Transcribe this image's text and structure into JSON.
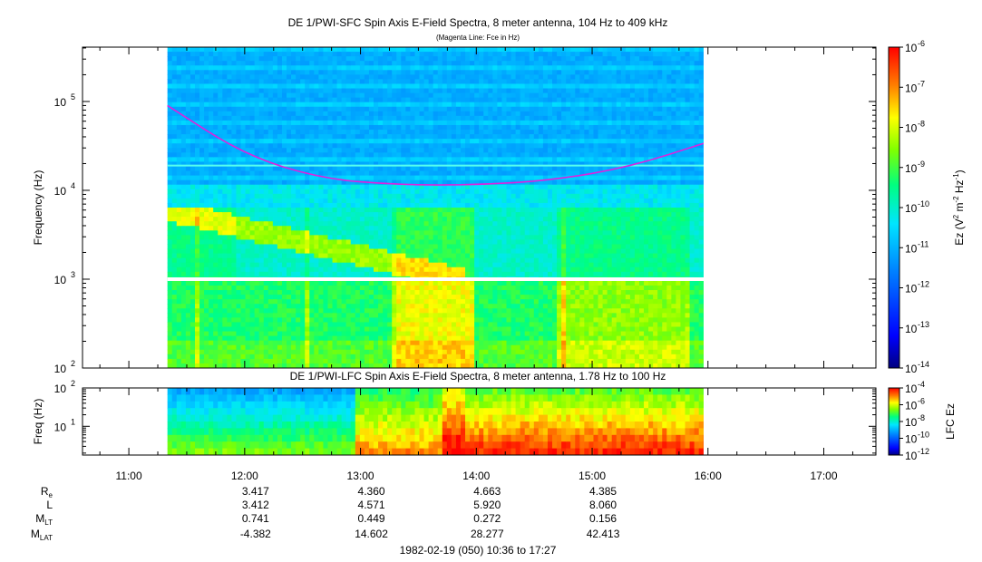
{
  "header": {
    "title": "DE 1/PWI-SFC  Spin Axis E-Field Spectra, 8 meter antenna, 104 Hz to 409 kHz",
    "subtitle": "(Magenta Line: Fce in Hz)"
  },
  "footer": {
    "date_range": "1982-02-19 (050) 10:36 to 17:27"
  },
  "colors": {
    "fce_line": "#dd22dd",
    "colormap": [
      "#000080",
      "#0000ff",
      "#0080ff",
      "#00e5ff",
      "#00ff80",
      "#80ff00",
      "#ffff00",
      "#ff8000",
      "#ff0000"
    ]
  },
  "chart_data": [
    {
      "type": "heatmap",
      "id": "sfc",
      "title": "DE 1/PWI-SFC  Spin Axis E-Field Spectra, 8 meter antenna, 104 Hz to 409 kHz",
      "ylabel": "Frequency (Hz)",
      "y_scale": "log",
      "ylim": [
        100,
        409000
      ],
      "xlim": [
        "10:36",
        "17:27"
      ],
      "data_extent": [
        "11:20",
        "16:00"
      ],
      "y_ticks": [
        {
          "value": 100,
          "base": "10",
          "exp": "2"
        },
        {
          "value": 1000,
          "base": "10",
          "exp": "3"
        },
        {
          "value": 10000,
          "base": "10",
          "exp": "4"
        },
        {
          "value": 100000,
          "base": "10",
          "exp": "5"
        }
      ],
      "colorbar": {
        "label_base": "Ez (V",
        "label_sup1": "2",
        "label_mid": " m",
        "label_sup2": "-2",
        "label_mid2": " Hz",
        "label_sup3": "-1",
        "label_end": ")",
        "scale": "log",
        "range": [
          1e-14,
          1e-06
        ],
        "ticks": [
          {
            "value": 1e-06,
            "base": "10",
            "exp": "-6"
          },
          {
            "value": 1e-07,
            "base": "10",
            "exp": "-7"
          },
          {
            "value": 1e-08,
            "base": "10",
            "exp": "-8"
          },
          {
            "value": 1e-09,
            "base": "10",
            "exp": "-9"
          },
          {
            "value": 1e-10,
            "base": "10",
            "exp": "-10"
          },
          {
            "value": 1e-11,
            "base": "10",
            "exp": "-11"
          },
          {
            "value": 1e-12,
            "base": "10",
            "exp": "-12"
          },
          {
            "value": 1e-13,
            "base": "10",
            "exp": "-13"
          },
          {
            "value": 1e-14,
            "base": "10",
            "exp": "-14"
          }
        ]
      },
      "fce_line": {
        "t": [
          "11:20",
          "12:00",
          "12:40",
          "13:20",
          "14:00",
          "14:40",
          "15:20",
          "16:00"
        ],
        "hz": [
          90000,
          25000,
          13500,
          11500,
          11500,
          13000,
          18500,
          35000
        ]
      },
      "gap_hz": 1000
    },
    {
      "type": "heatmap",
      "id": "lfc",
      "title": "DE 1/PWI-LFC  Spin Axis E-Field Spectra, 8 meter antenna, 1.78 Hz to 100 Hz",
      "ylabel": "Freq (Hz)",
      "y_scale": "log",
      "ylim": [
        1.78,
        100
      ],
      "xlim": [
        "10:36",
        "17:27"
      ],
      "data_extent": [
        "11:20",
        "16:00"
      ],
      "y_ticks": [
        {
          "value": 10,
          "base": "10",
          "exp": "1"
        },
        {
          "value": 100,
          "base": "10",
          "exp": "2"
        }
      ],
      "colorbar": {
        "label": "LFC Ez",
        "scale": "log",
        "range": [
          1e-12,
          0.0001
        ],
        "ticks": [
          {
            "value": 0.0001,
            "base": "10",
            "exp": "-4"
          },
          {
            "value": 1e-06,
            "base": "10",
            "exp": "-6"
          },
          {
            "value": 1e-08,
            "base": "10",
            "exp": "-8"
          },
          {
            "value": 1e-10,
            "base": "10",
            "exp": "-10"
          },
          {
            "value": 1e-12,
            "base": "10",
            "exp": "-12"
          }
        ]
      }
    }
  ],
  "time_axis": {
    "start": "10:36",
    "end": "17:27",
    "ticks": [
      "11:00",
      "12:00",
      "13:00",
      "14:00",
      "15:00",
      "16:00",
      "17:00"
    ]
  },
  "ephemeris": {
    "rows": [
      {
        "label": "R",
        "sub": "e",
        "values": [
          "3.417",
          "4.360",
          "4.663",
          "4.385"
        ]
      },
      {
        "label": "L",
        "sub": "",
        "values": [
          "3.412",
          "4.571",
          "5.920",
          "8.060"
        ]
      },
      {
        "label": "M",
        "sub": "LT",
        "values": [
          "0.741",
          "0.449",
          "0.272",
          "0.156"
        ]
      },
      {
        "label": "M",
        "sub": "LAT",
        "values": [
          "-4.382",
          "14.602",
          "28.277",
          "42.413"
        ]
      }
    ],
    "times": [
      "12:00",
      "13:00",
      "14:00",
      "15:00"
    ]
  }
}
